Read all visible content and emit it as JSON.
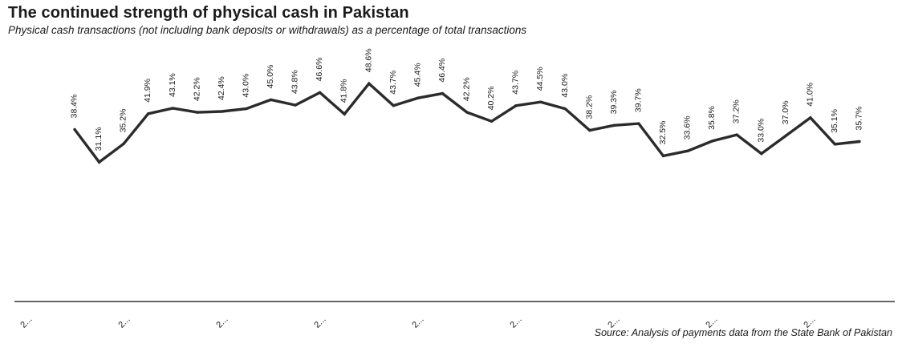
{
  "title": "The continued strength of physical cash in Pakistan",
  "subtitle": "Physical cash transactions (not including bank deposits or withdrawals) as a percentage of total transactions",
  "source": "Source: Analysis of payments data from the State Bank of Pakistan",
  "colors": {
    "line": "#2b2b2b",
    "axis": "#333333",
    "text": "#1a1a1a"
  },
  "chart_data": {
    "type": "line",
    "title": "The continued strength of physical cash in Pakistan",
    "subtitle": "Physical cash transactions (not including bank deposits or withdrawals) as a percentage of total transactions",
    "xlabel": "",
    "ylabel": "",
    "ylim": [
      30,
      50
    ],
    "grid": false,
    "legend": "none",
    "x_tick_labels": [
      "2...",
      "2...",
      "2...",
      "2...",
      "2...",
      "2...",
      "2...",
      "2...",
      "2..."
    ],
    "series": [
      {
        "values": [
          38.4,
          31.1,
          35.2,
          41.9,
          43.1,
          42.2,
          42.4,
          43.0,
          45.0,
          43.8,
          46.6,
          41.8,
          48.6,
          43.7,
          45.4,
          46.4,
          42.2,
          40.2,
          43.7,
          44.5,
          43.0,
          38.2,
          39.3,
          39.7,
          32.5,
          33.6,
          35.8,
          37.2,
          33.0,
          37.0,
          41.0,
          35.1,
          35.7
        ],
        "labels": [
          "38.4%",
          "31.1%",
          "35.2%",
          "41.9%",
          "43.1%",
          "42.2%",
          "42.4%",
          "43.0%",
          "45.0%",
          "43.8%",
          "46.6%",
          "41.8%",
          "48.6%",
          "43.7%",
          "45.4%",
          "46.4%",
          "42.2%",
          "40.2%",
          "43.7%",
          "44.5%",
          "43.0%",
          "38.2%",
          "39.3%",
          "39.7%",
          "32.5%",
          "33.6%",
          "35.8%",
          "37.2%",
          "33.0%",
          "37.0%",
          "41.0%",
          "35.1%",
          "35.7%"
        ]
      }
    ]
  }
}
